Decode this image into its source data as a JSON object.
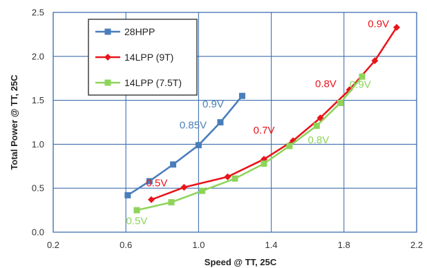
{
  "chart_data": {
    "type": "line",
    "xlabel": "Speed @ TT, 25C",
    "ylabel": "Total Power @ TT, 25C",
    "xlim": [
      0.2,
      2.2
    ],
    "ylim": [
      0.0,
      2.5
    ],
    "xticks": [
      "0.2",
      "0.6",
      "1.0",
      "1.4",
      "1.8",
      "2.2"
    ],
    "yticks": [
      "0.0",
      "0.5",
      "1.0",
      "1.5",
      "2.0",
      "2.5"
    ],
    "grid": true,
    "legend_position": "top-left",
    "series": [
      {
        "name": "28HPP",
        "color": "#4a7ebb",
        "marker": "square",
        "points": [
          [
            0.61,
            0.42
          ],
          [
            0.73,
            0.58
          ],
          [
            0.86,
            0.77
          ],
          [
            1.0,
            0.99
          ],
          [
            1.12,
            1.25
          ],
          [
            1.24,
            1.55
          ]
        ]
      },
      {
        "name": "14LPP (9T)",
        "color": "#e8151b",
        "marker": "diamond",
        "points": [
          [
            0.74,
            0.37
          ],
          [
            0.92,
            0.51
          ],
          [
            1.16,
            0.63
          ],
          [
            1.36,
            0.83
          ],
          [
            1.52,
            1.04
          ],
          [
            1.67,
            1.3
          ],
          [
            1.83,
            1.62
          ],
          [
            1.97,
            1.95
          ],
          [
            2.09,
            2.33
          ]
        ]
      },
      {
        "name": "14LPP (7.5T)",
        "color": "#8ed45a",
        "marker": "square",
        "points": [
          [
            0.66,
            0.25
          ],
          [
            0.85,
            0.34
          ],
          [
            1.02,
            0.47
          ],
          [
            1.2,
            0.61
          ],
          [
            1.36,
            0.78
          ],
          [
            1.5,
            0.98
          ],
          [
            1.65,
            1.21
          ],
          [
            1.78,
            1.47
          ],
          [
            1.9,
            1.77
          ]
        ]
      }
    ],
    "annotations": [
      {
        "text": "0.9V",
        "x": 1.08,
        "y": 1.42,
        "color": "#4a7ebb"
      },
      {
        "text": "0.85V",
        "x": 0.97,
        "y": 1.18,
        "color": "#4a7ebb"
      },
      {
        "text": "0.5V",
        "x": 0.77,
        "y": 0.52,
        "color": "#e8151b"
      },
      {
        "text": "0.7V",
        "x": 1.36,
        "y": 1.12,
        "color": "#e8151b"
      },
      {
        "text": "0.8V",
        "x": 1.7,
        "y": 1.65,
        "color": "#e8151b"
      },
      {
        "text": "0.9V",
        "x": 1.99,
        "y": 2.33,
        "color": "#e8151b"
      },
      {
        "text": "0.9V",
        "x": 1.89,
        "y": 1.64,
        "color": "#8ed45a"
      },
      {
        "text": "0.8V",
        "x": 1.66,
        "y": 1.01,
        "color": "#8ed45a"
      },
      {
        "text": "0.5V",
        "x": 0.66,
        "y": 0.09,
        "color": "#8ed45a"
      }
    ]
  }
}
